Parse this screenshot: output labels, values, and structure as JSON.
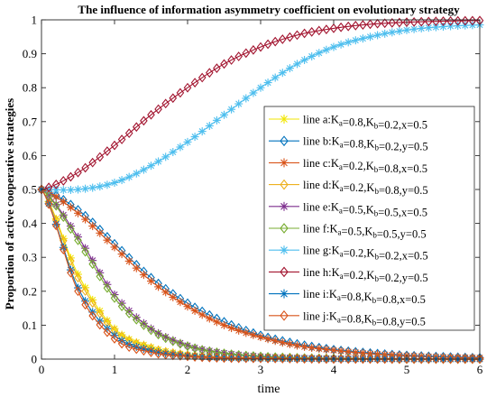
{
  "chart_data": {
    "type": "line",
    "title": "The influence of information asymmetry coefficient on evolutionary strategy",
    "xlabel": "time",
    "ylabel": "Proportion of active cooperative strategies",
    "xlim": [
      0,
      6
    ],
    "ylim": [
      0,
      1
    ],
    "xticks": [
      "0",
      "1",
      "2",
      "3",
      "4",
      "5",
      "6"
    ],
    "yticks": [
      "0",
      "0.1",
      "0.2",
      "0.3",
      "0.4",
      "0.5",
      "0.6",
      "0.7",
      "0.8",
      "0.9",
      "1"
    ],
    "grid": false,
    "legend_position": "right",
    "x": [
      0,
      0.5,
      1,
      1.5,
      2,
      2.5,
      3,
      3.5,
      4,
      4.5,
      5,
      5.5,
      6
    ],
    "series": [
      {
        "id": "a",
        "name_main": "line a:K",
        "name_sub1": "a",
        "name_mid": "=0.8,K",
        "name_sub2": "b",
        "name_tail": "=0.2,x=0.5",
        "color": "#F2E600",
        "marker": "star",
        "values": [
          0.5,
          0.25,
          0.09,
          0.035,
          0.013,
          0.006,
          0.003,
          0.002,
          0.001,
          0.001,
          0.0,
          0.0,
          0.0
        ]
      },
      {
        "id": "b",
        "name_main": "line b:K",
        "name_sub1": "a",
        "name_mid": "=0.8,K",
        "name_sub2": "b",
        "name_tail": "=0.2,y=0.5",
        "color": "#0072BD",
        "marker": "diamond",
        "values": [
          0.5,
          0.44,
          0.34,
          0.24,
          0.165,
          0.11,
          0.07,
          0.045,
          0.028,
          0.018,
          0.011,
          0.007,
          0.004
        ]
      },
      {
        "id": "c",
        "name_main": "line c:K",
        "name_sub1": "a",
        "name_mid": "=0.2,K",
        "name_sub2": "b",
        "name_tail": "=0.8,x=0.5",
        "color": "#D95319",
        "marker": "star",
        "values": [
          0.5,
          0.43,
          0.33,
          0.23,
          0.155,
          0.1,
          0.065,
          0.04,
          0.026,
          0.016,
          0.01,
          0.006,
          0.004
        ]
      },
      {
        "id": "d",
        "name_main": "line d:K",
        "name_sub1": "a",
        "name_mid": "=0.2,K",
        "name_sub2": "b",
        "name_tail": "=0.8,y=0.5",
        "color": "#EDB120",
        "marker": "diamond",
        "values": [
          0.5,
          0.24,
          0.085,
          0.032,
          0.012,
          0.005,
          0.003,
          0.002,
          0.001,
          0.001,
          0.0,
          0.0,
          0.0
        ]
      },
      {
        "id": "e",
        "name_main": "line e:K",
        "name_sub1": "a",
        "name_mid": "=0.5,K",
        "name_sub2": "b",
        "name_tail": "=0.5,x=0.5",
        "color": "#7E2F8E",
        "marker": "star",
        "values": [
          0.5,
          0.36,
          0.19,
          0.09,
          0.04,
          0.018,
          0.008,
          0.004,
          0.002,
          0.001,
          0.0,
          0.0,
          0.0
        ]
      },
      {
        "id": "f",
        "name_main": "line f:K",
        "name_sub1": "a",
        "name_mid": "=0.5,K",
        "name_sub2": "b",
        "name_tail": "=0.5,y=0.5",
        "color": "#77AC30",
        "marker": "diamond",
        "values": [
          0.5,
          0.35,
          0.18,
          0.085,
          0.038,
          0.017,
          0.008,
          0.004,
          0.002,
          0.001,
          0.0,
          0.0,
          0.0
        ]
      },
      {
        "id": "g",
        "name_main": "line g:K",
        "name_sub1": "a",
        "name_mid": "=0.2,K",
        "name_sub2": "b",
        "name_tail": "=0.2,x=0.5",
        "color": "#4DBEEE",
        "marker": "star",
        "values": [
          0.5,
          0.5,
          0.52,
          0.57,
          0.64,
          0.72,
          0.8,
          0.87,
          0.92,
          0.95,
          0.97,
          0.98,
          0.985
        ]
      },
      {
        "id": "h",
        "name_main": "line h:K",
        "name_sub1": "a",
        "name_mid": "=0.2,K",
        "name_sub2": "b",
        "name_tail": "=0.2,y=0.5",
        "color": "#A2142F",
        "marker": "diamond",
        "values": [
          0.5,
          0.55,
          0.63,
          0.72,
          0.8,
          0.87,
          0.92,
          0.955,
          0.975,
          0.987,
          0.993,
          0.996,
          0.998
        ]
      },
      {
        "id": "i",
        "name_main": "line i:K",
        "name_sub1": "a",
        "name_mid": "=0.8,K",
        "name_sub2": "b",
        "name_tail": "=0.8,x=0.5",
        "color": "#0072BD",
        "marker": "star",
        "values": [
          0.5,
          0.21,
          0.07,
          0.025,
          0.01,
          0.004,
          0.002,
          0.001,
          0.0,
          0.0,
          0.0,
          0.0,
          0.0
        ]
      },
      {
        "id": "j",
        "name_main": "line j:K",
        "name_sub1": "a",
        "name_mid": "=0.8,K",
        "name_sub2": "b",
        "name_tail": "=0.8,y=0.5",
        "color": "#D95319",
        "marker": "diamond",
        "values": [
          0.5,
          0.2,
          0.06,
          0.02,
          0.008,
          0.003,
          0.002,
          0.001,
          0.0,
          0.0,
          0.0,
          0.0,
          0.0
        ]
      }
    ]
  }
}
